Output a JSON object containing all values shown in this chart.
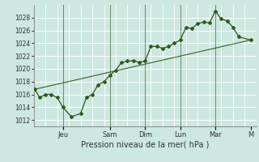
{
  "title": "",
  "xlabel": "Pression niveau de la mer( hPa )",
  "ylabel": "",
  "bg_color": "#cce8e0",
  "grid_color": "#ffffff",
  "line_color": "#2d5a1b",
  "vline_color": "#6a8a6a",
  "ylim": [
    1011,
    1030
  ],
  "yticks": [
    1012,
    1014,
    1016,
    1018,
    1020,
    1022,
    1024,
    1026,
    1028
  ],
  "day_labels": [
    "Jeu",
    "Sam",
    "Dim",
    "Lun",
    "Mar",
    "M"
  ],
  "day_positions": [
    2.5,
    6.5,
    9.5,
    12.5,
    15.5,
    18.5
  ],
  "xlim": [
    0,
    19
  ],
  "line1_x": [
    0.1,
    0.5,
    1.0,
    1.5,
    2.0,
    2.5,
    3.2,
    4.0,
    4.5,
    5.0,
    5.5,
    6.0,
    6.5,
    7.0,
    7.5,
    8.0,
    8.5,
    9.0,
    9.5,
    10.0,
    10.5,
    11.0,
    11.5,
    12.0,
    12.5,
    13.0,
    13.5,
    14.0,
    14.5,
    15.0,
    15.5,
    16.0,
    16.5,
    17.0,
    17.5,
    18.5
  ],
  "line1_y": [
    1016.8,
    1015.5,
    1016.0,
    1016.0,
    1015.5,
    1014.0,
    1012.5,
    1013.0,
    1015.5,
    1016.0,
    1017.5,
    1018.0,
    1019.0,
    1019.8,
    1021.0,
    1021.2,
    1021.3,
    1021.0,
    1021.2,
    1023.5,
    1023.5,
    1023.2,
    1023.5,
    1024.0,
    1024.5,
    1026.5,
    1026.3,
    1027.1,
    1027.3,
    1027.2,
    1029.0,
    1027.8,
    1027.5,
    1026.5,
    1025.0,
    1024.5
  ],
  "line2_x": [
    0.1,
    18.5
  ],
  "line2_y": [
    1016.8,
    1024.5
  ],
  "vline_positions": [
    2.5,
    6.5,
    9.5,
    12.5,
    15.5
  ]
}
